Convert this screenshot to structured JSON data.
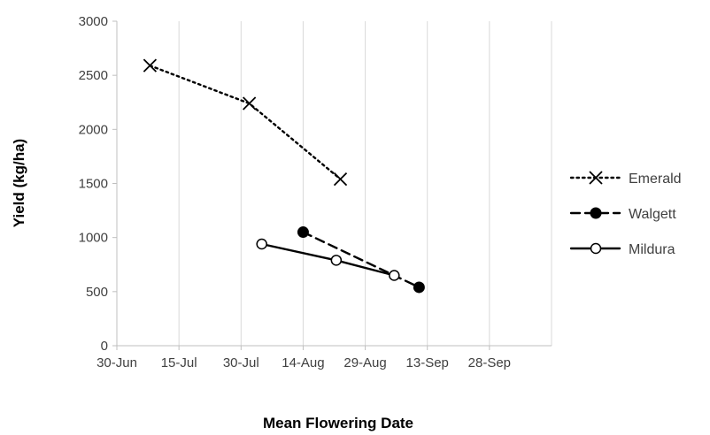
{
  "chart_data": {
    "type": "line",
    "xlabel": "Mean Flowering Date",
    "ylabel": "Yield (kg/ha)",
    "x_ticks": [
      "30-Jun",
      "15-Jul",
      "30-Jul",
      "14-Aug",
      "29-Aug",
      "13-Sep",
      "28-Sep"
    ],
    "y_ticks": [
      0,
      500,
      1000,
      1500,
      2000,
      2500,
      3000
    ],
    "ylim": [
      0,
      3000
    ],
    "xlim": [
      "30-Jun",
      "13-Oct"
    ],
    "grid": "vertical",
    "legend": "right",
    "series": [
      {
        "name": "Emerald",
        "line_style": "dotted",
        "marker": "x",
        "color": "#000000",
        "points": [
          {
            "x": "08-Jul",
            "y": 2590
          },
          {
            "x": "01-Aug",
            "y": 2240
          },
          {
            "x": "23-Aug",
            "y": 1540
          }
        ]
      },
      {
        "name": "Walgett",
        "line_style": "dashed",
        "marker": "filled-circle",
        "color": "#000000",
        "points": [
          {
            "x": "14-Aug",
            "y": 1050
          },
          {
            "x": "11-Sep",
            "y": 540
          }
        ]
      },
      {
        "name": "Mildura",
        "line_style": "solid",
        "marker": "open-circle",
        "color": "#000000",
        "points": [
          {
            "x": "04-Aug",
            "y": 940
          },
          {
            "x": "22-Aug",
            "y": 790
          },
          {
            "x": "05-Sep",
            "y": 650
          }
        ]
      }
    ]
  }
}
